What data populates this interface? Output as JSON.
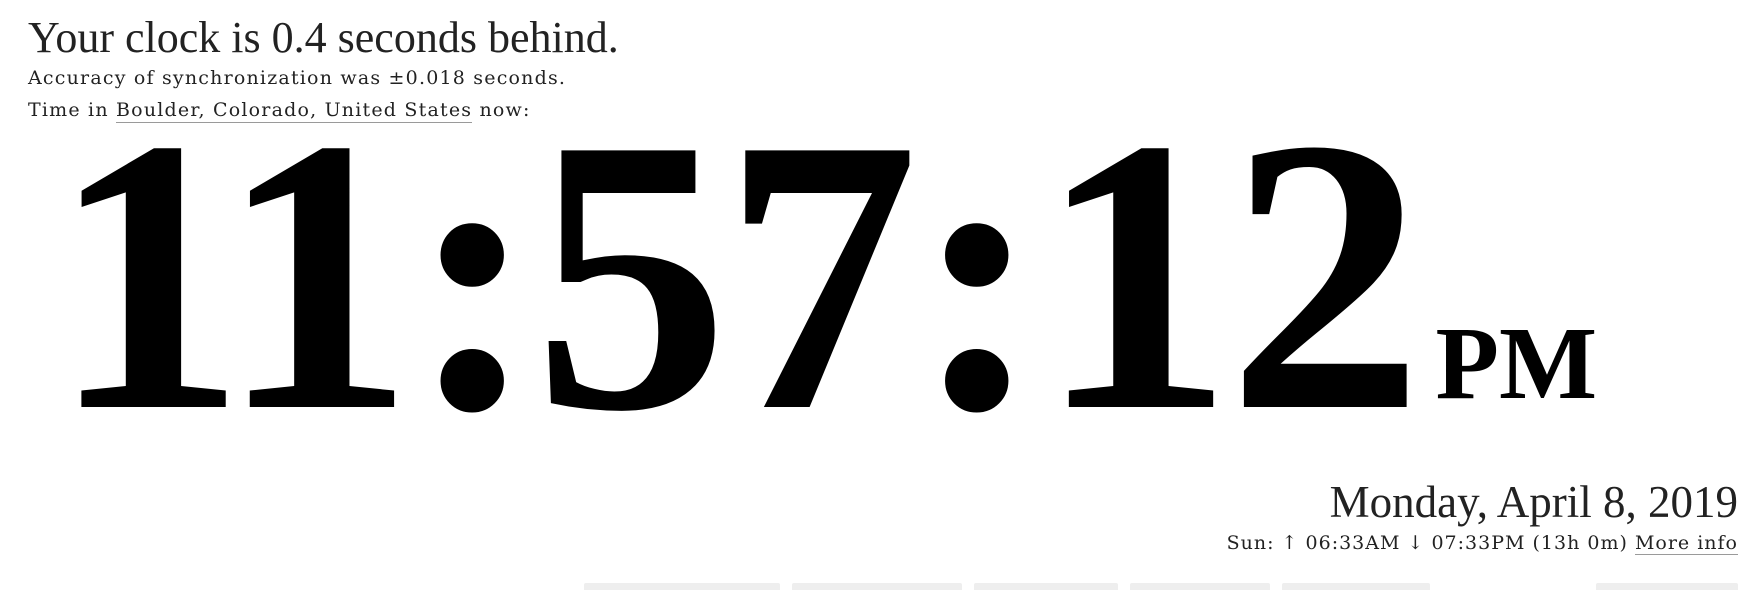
{
  "headline": "Your clock is 0.4 seconds behind.",
  "accuracy": "Accuracy of synchronization was ±0.018 seconds.",
  "location": {
    "prefix": "Time in ",
    "place": "Boulder, Colorado, United States",
    "suffix": " now:"
  },
  "clock": {
    "time": "11:57:12",
    "ampm": "PM"
  },
  "date": "Monday, April 8, 2019",
  "sun": {
    "label": "Sun: ",
    "sunrise_icon": "arrow-up-icon",
    "sunrise": "06:33AM",
    "sunset_icon": "arrow-down-icon",
    "sunset": "07:33PM",
    "day_length": "(13h 0m)",
    "more_info": "More info"
  },
  "colors": {
    "text": "#222222",
    "clock": "#000000",
    "background": "#ffffff",
    "tab": "#eeeeee"
  }
}
